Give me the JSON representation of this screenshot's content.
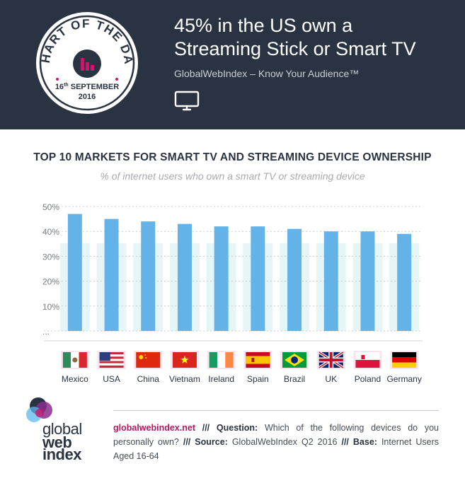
{
  "header": {
    "badge": {
      "arc_text": "CHART OF THE DAY",
      "date_day": "16",
      "date_suffix": "th",
      "date_month": " SEPTEMBER",
      "date_year": "2016"
    },
    "headline_line1": "45% in the US own a",
    "headline_line2": "Streaming Stick or Smart TV",
    "tagline": "GlobalWebIndex – Know Your Audience™",
    "icon": "tv-icon"
  },
  "chart_data": {
    "type": "bar",
    "title": "TOP 10 MARKETS FOR SMART TV AND STREAMING DEVICE OWNERSHIP",
    "subtitle": "% of internet users who own a smart TV or streaming device",
    "categories": [
      "Mexico",
      "USA",
      "China",
      "Vietnam",
      "Ireland",
      "Spain",
      "Brazil",
      "UK",
      "Poland",
      "Germany"
    ],
    "values": [
      47,
      45,
      44,
      43,
      42,
      42,
      41,
      40,
      40,
      39
    ],
    "ytick_labels": [
      "50%",
      "40%",
      "30%",
      "20%",
      "10%",
      "..."
    ],
    "ylim": [
      0,
      50
    ],
    "grid": true,
    "bar_color": "#63b3e8",
    "background_band_color": "#e6f6f6"
  },
  "flags": [
    "mexico-flag",
    "usa-flag",
    "china-flag",
    "vietnam-flag",
    "ireland-flag",
    "spain-flag",
    "brazil-flag",
    "uk-flag",
    "poland-flag",
    "germany-flag"
  ],
  "footer": {
    "site": "globalwebindex.net",
    "sep": " /// ",
    "q_label": "Question:",
    "q_text": " Which of the following devices do you personally own? ",
    "src_label": "Source:",
    "src_text": " GlobalWebIndex Q2 2016 ",
    "base_label": "Base:",
    "base_text": " Internet Users Aged 16-64"
  },
  "logo": {
    "line1": "global",
    "line2": "web",
    "line3": "index"
  }
}
